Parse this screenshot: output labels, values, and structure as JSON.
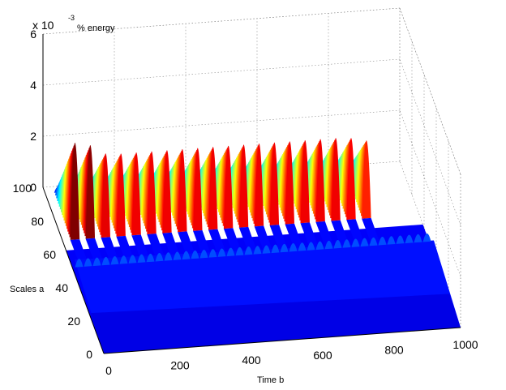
{
  "chart_data": {
    "type": "surface",
    "z_multiplier": "x 10",
    "z_exponent": "-3",
    "zlabel": "% energy",
    "ylabel": "Scales a",
    "xlabel": "Time b",
    "xlim": [
      0,
      1000
    ],
    "ylim": [
      0,
      100
    ],
    "zlim": [
      0,
      6
    ],
    "x_ticks": [
      "0",
      "200",
      "400",
      "600",
      "800",
      "1000"
    ],
    "y_ticks": [
      "0",
      "20",
      "40",
      "60",
      "80",
      "100"
    ],
    "z_ticks": [
      "0",
      "2",
      "4",
      "6"
    ],
    "grid": true,
    "colormap": "jet",
    "ridges_high_scale": {
      "scale_a": 68,
      "count": 20,
      "peak_time_b": [
        35,
        78,
        121,
        164,
        207,
        250,
        293,
        336,
        379,
        422,
        465,
        508,
        551,
        594,
        637,
        680,
        723,
        766,
        809,
        852
      ],
      "peak_energy_e3": [
        4.1,
        3.95,
        3.55,
        3.5,
        3.5,
        3.5,
        3.5,
        3.5,
        3.5,
        3.5,
        3.5,
        3.5,
        3.5,
        3.5,
        3.5,
        3.5,
        3.5,
        3.5,
        3.45,
        3.3
      ]
    },
    "ridges_low_scale": {
      "scale_a": 40,
      "count": 40,
      "peak_energy_e3": 0.4
    }
  }
}
